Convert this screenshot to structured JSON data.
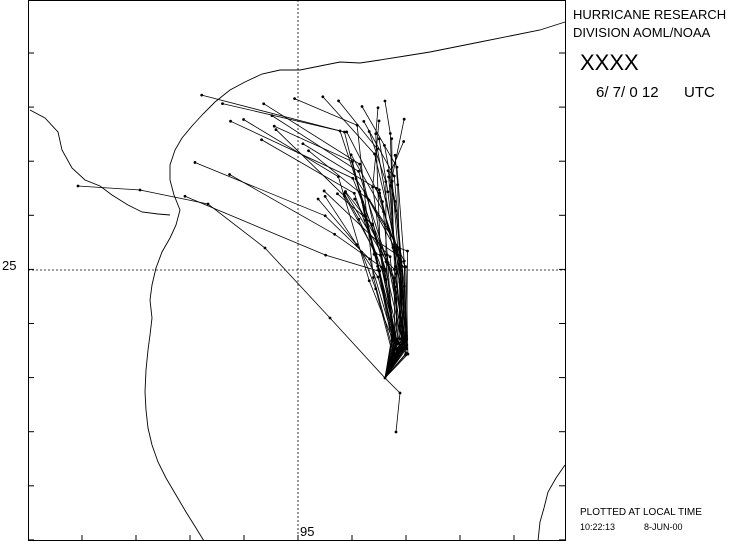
{
  "header": {
    "line1": "HURRICANE RESEARCH",
    "line2": "DIVISION AOML/NOAA"
  },
  "storm": {
    "name": "XXXX",
    "date": "6/ 7/ 0 12",
    "zone": "UTC"
  },
  "footer": {
    "note": "PLOTTED AT LOCAL TIME",
    "time": "10:22:13",
    "date": "8-JUN-00"
  },
  "axes": {
    "lat_label": "25",
    "lon_label": "95"
  }
}
